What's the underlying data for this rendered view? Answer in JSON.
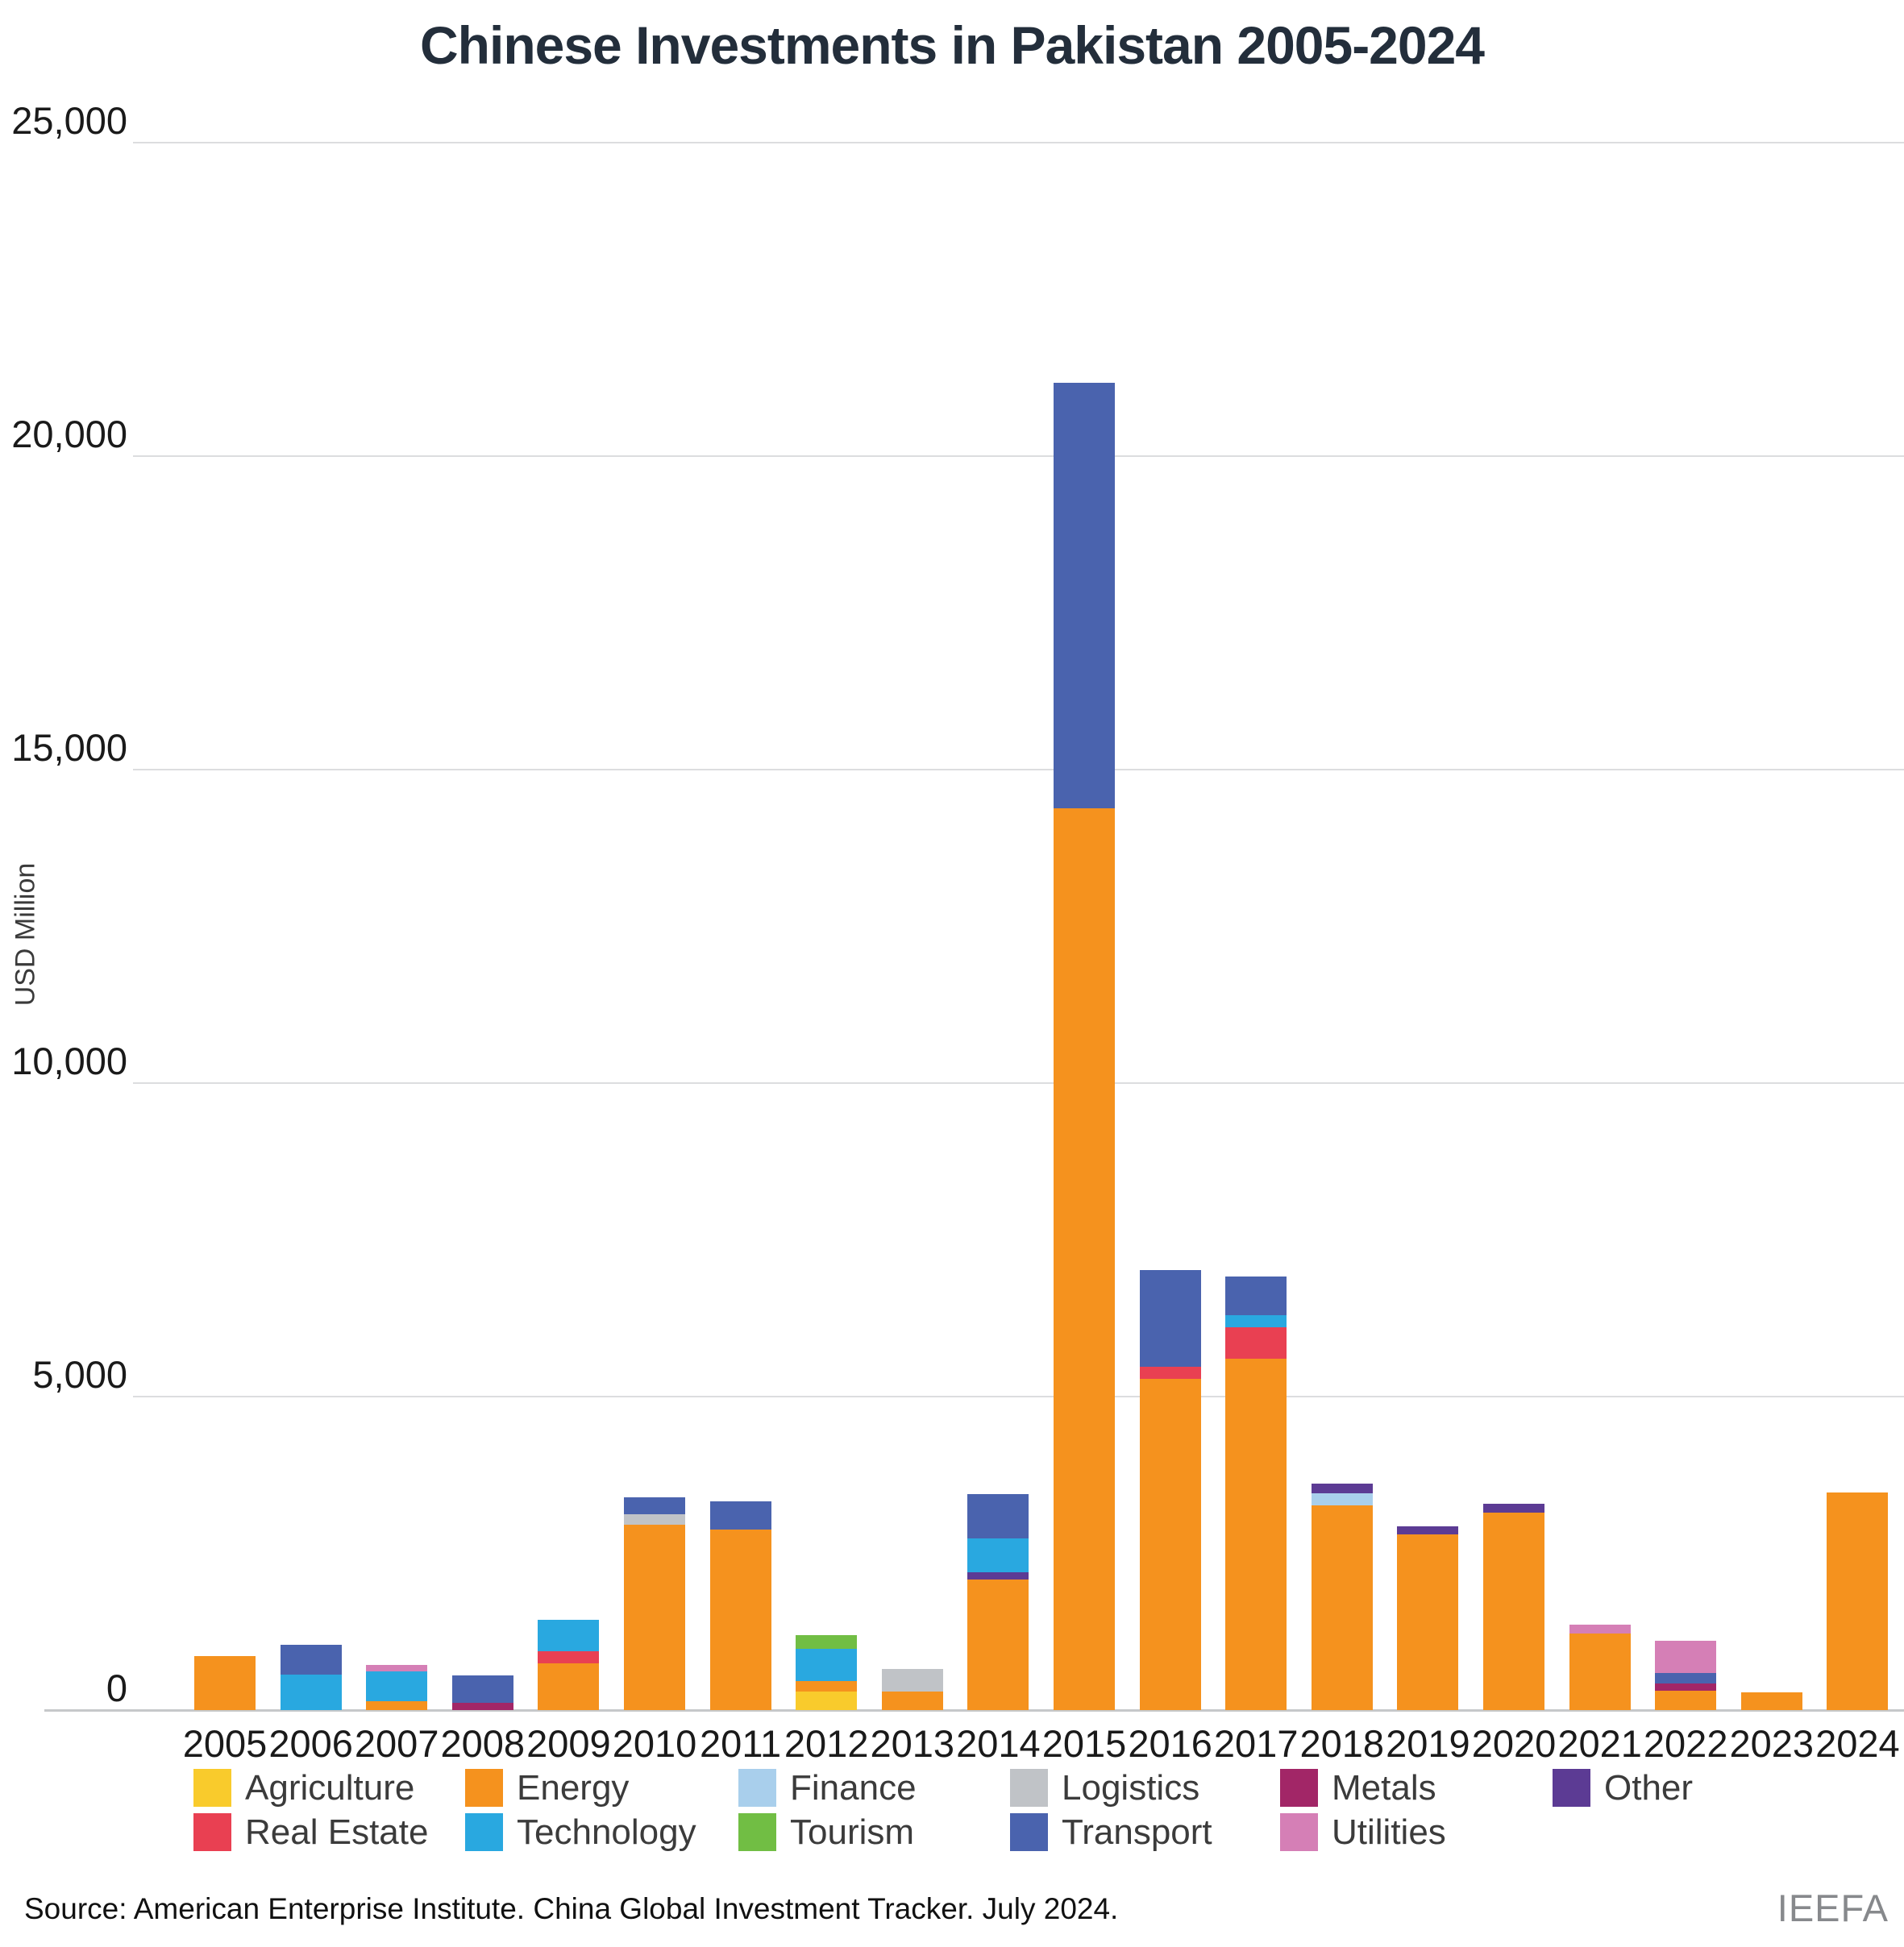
{
  "title": "Chinese Investments in Pakistan 2005-2024",
  "y_axis": {
    "label": "USD Million",
    "ticks": [
      {
        "value": 25000,
        "label": "25,000"
      },
      {
        "value": 20000,
        "label": "20,000"
      },
      {
        "value": 15000,
        "label": "15,000"
      },
      {
        "value": 10000,
        "label": "10,000"
      },
      {
        "value": 5000,
        "label": "5,000"
      },
      {
        "value": 0,
        "label": "0"
      }
    ]
  },
  "source": "Source: American Enterprise Institute. China Global Investment Tracker. July 2024.",
  "watermark": "IEEFA",
  "chart_data": {
    "type": "bar",
    "stacked": true,
    "title": "Chinese Investments in Pakistan 2005-2024",
    "xlabel": "",
    "ylabel": "USD Million",
    "ylim": [
      0,
      25000
    ],
    "grid": true,
    "legend_position": "bottom",
    "categories": [
      "2005",
      "2006",
      "2007",
      "2008",
      "2009",
      "2010",
      "2011",
      "2012",
      "2013",
      "2014",
      "2015",
      "2016",
      "2017",
      "2018",
      "2019",
      "2020",
      "2021",
      "2022",
      "2023",
      "2024"
    ],
    "series": [
      {
        "name": "Agriculture",
        "color": "#F9CB2C",
        "values": [
          0,
          0,
          0,
          0,
          0,
          0,
          0,
          290,
          0,
          0,
          0,
          0,
          0,
          0,
          0,
          0,
          0,
          0,
          0,
          0
        ]
      },
      {
        "name": "Energy",
        "color": "#F5921E",
        "values": [
          860,
          0,
          145,
          0,
          745,
          2955,
          2875,
          170,
          290,
          2080,
          14380,
          5280,
          5605,
          3270,
          2800,
          3145,
          1215,
          310,
          280,
          3470
        ]
      },
      {
        "name": "Finance",
        "color": "#A9CFEC",
        "values": [
          0,
          0,
          0,
          0,
          0,
          0,
          0,
          0,
          0,
          0,
          0,
          0,
          0,
          185,
          0,
          0,
          0,
          0,
          0,
          0
        ]
      },
      {
        "name": "Logistics",
        "color": "#C0C3C7",
        "values": [
          0,
          0,
          0,
          0,
          0,
          170,
          0,
          0,
          365,
          0,
          0,
          0,
          0,
          0,
          0,
          0,
          0,
          0,
          0,
          0
        ]
      },
      {
        "name": "Metals",
        "color": "#A22667",
        "values": [
          0,
          0,
          0,
          120,
          0,
          0,
          0,
          0,
          0,
          0,
          0,
          0,
          0,
          0,
          0,
          0,
          0,
          115,
          0,
          0
        ]
      },
      {
        "name": "Other",
        "color": "#5C3B94",
        "values": [
          0,
          0,
          0,
          0,
          0,
          0,
          0,
          0,
          0,
          120,
          0,
          0,
          0,
          160,
          130,
          140,
          0,
          0,
          0,
          0
        ]
      },
      {
        "name": "Real Estate",
        "color": "#E94052",
        "values": [
          0,
          0,
          0,
          0,
          190,
          0,
          0,
          0,
          0,
          0,
          0,
          200,
          500,
          0,
          0,
          0,
          0,
          0,
          0,
          0
        ]
      },
      {
        "name": "Technology",
        "color": "#29A8E0",
        "values": [
          0,
          560,
          470,
          0,
          505,
          0,
          0,
          515,
          0,
          540,
          0,
          0,
          190,
          0,
          0,
          0,
          0,
          0,
          0,
          0
        ]
      },
      {
        "name": "Tourism",
        "color": "#71BE44",
        "values": [
          0,
          0,
          0,
          0,
          0,
          0,
          0,
          220,
          0,
          0,
          0,
          0,
          0,
          0,
          0,
          0,
          0,
          0,
          0,
          0
        ]
      },
      {
        "name": "Transport",
        "color": "#4A63AE",
        "values": [
          0,
          480,
          0,
          430,
          0,
          270,
          455,
          0,
          0,
          705,
          6790,
          1540,
          620,
          0,
          0,
          0,
          0,
          160,
          0,
          0
        ]
      },
      {
        "name": "Utilities",
        "color": "#D57FB6",
        "values": [
          0,
          0,
          105,
          0,
          0,
          0,
          0,
          0,
          0,
          0,
          0,
          0,
          0,
          0,
          0,
          0,
          145,
          515,
          0,
          0
        ]
      }
    ],
    "legend_rows": [
      [
        "Agriculture",
        "Energy",
        "Finance",
        "Logistics",
        "Metals",
        "Other"
      ],
      [
        "Real Estate",
        "Technology",
        "Tourism",
        "Transport",
        "Utilities"
      ]
    ]
  }
}
